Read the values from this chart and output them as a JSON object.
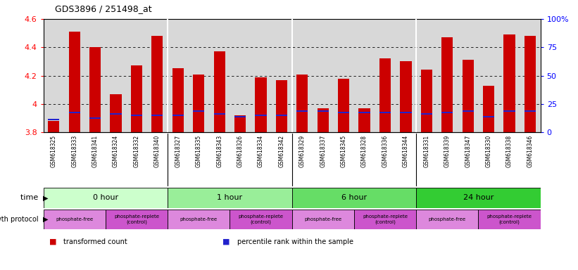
{
  "title": "GDS3896 / 251498_at",
  "samples": [
    "GSM618325",
    "GSM618333",
    "GSM618341",
    "GSM618324",
    "GSM618332",
    "GSM618340",
    "GSM618327",
    "GSM618335",
    "GSM618343",
    "GSM618326",
    "GSM618334",
    "GSM618342",
    "GSM618329",
    "GSM618337",
    "GSM618345",
    "GSM618328",
    "GSM618336",
    "GSM618344",
    "GSM618331",
    "GSM618339",
    "GSM618347",
    "GSM618330",
    "GSM618338",
    "GSM618346"
  ],
  "transformed_count": [
    3.88,
    4.51,
    4.4,
    4.07,
    4.27,
    4.48,
    4.25,
    4.21,
    4.37,
    3.92,
    4.19,
    4.17,
    4.21,
    3.97,
    4.18,
    3.97,
    4.32,
    4.3,
    4.24,
    4.47,
    4.31,
    4.13,
    4.49,
    4.48
  ],
  "percentile_rank": [
    3.89,
    3.94,
    3.9,
    3.93,
    3.92,
    3.92,
    3.92,
    3.95,
    3.93,
    3.91,
    3.92,
    3.92,
    3.95,
    3.95,
    3.94,
    3.94,
    3.94,
    3.94,
    3.93,
    3.94,
    3.95,
    3.91,
    3.95,
    3.95
  ],
  "ylim": [
    3.8,
    4.6
  ],
  "yticks": [
    3.8,
    4.0,
    4.2,
    4.4,
    4.6
  ],
  "ytick_labels": [
    "3.8",
    "4",
    "4.2",
    "4.4",
    "4.6"
  ],
  "right_yticks_pct": [
    0,
    25,
    50,
    75,
    100
  ],
  "right_ytick_labels": [
    "0",
    "25",
    "50",
    "75",
    "100%"
  ],
  "bar_color": "#cc0000",
  "dot_color": "#2222cc",
  "bg_color": "#d8d8d8",
  "grid_color": "#000000",
  "time_groups": [
    {
      "label": "0 hour",
      "start": 0,
      "end": 6,
      "color": "#ccffcc"
    },
    {
      "label": "1 hour",
      "start": 6,
      "end": 12,
      "color": "#99ee99"
    },
    {
      "label": "6 hour",
      "start": 12,
      "end": 18,
      "color": "#66dd66"
    },
    {
      "label": "24 hour",
      "start": 18,
      "end": 24,
      "color": "#33cc33"
    }
  ],
  "protocol_groups": [
    {
      "label": "phosphate-free",
      "start": 0,
      "end": 3,
      "color": "#dd88dd"
    },
    {
      "label": "phosphate-replete\n(control)",
      "start": 3,
      "end": 6,
      "color": "#cc55cc"
    },
    {
      "label": "phosphate-free",
      "start": 6,
      "end": 9,
      "color": "#dd88dd"
    },
    {
      "label": "phosphate-replete\n(control)",
      "start": 9,
      "end": 12,
      "color": "#cc55cc"
    },
    {
      "label": "phosphate-free",
      "start": 12,
      "end": 15,
      "color": "#dd88dd"
    },
    {
      "label": "phosphate-replete\n(control)",
      "start": 15,
      "end": 18,
      "color": "#cc55cc"
    },
    {
      "label": "phosphate-free",
      "start": 18,
      "end": 21,
      "color": "#dd88dd"
    },
    {
      "label": "phosphate-replete\n(control)",
      "start": 21,
      "end": 24,
      "color": "#cc55cc"
    }
  ],
  "legend_items": [
    {
      "label": "transformed count",
      "color": "#cc0000"
    },
    {
      "label": "percentile rank within the sample",
      "color": "#2222cc"
    }
  ]
}
